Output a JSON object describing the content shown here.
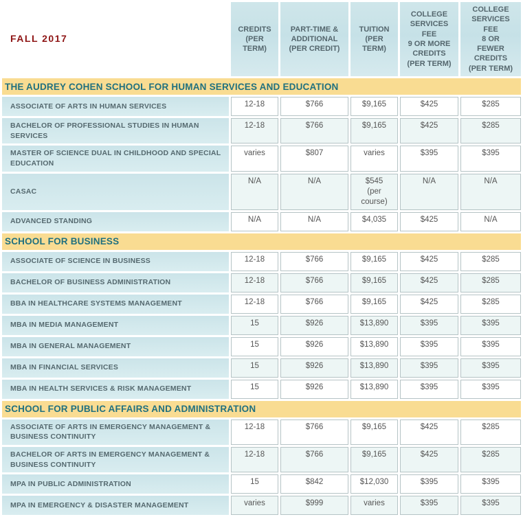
{
  "title": "FALL 2017",
  "columns": [
    "CREDITS\n(PER\nTERM)",
    "PART-TIME &\nADDITIONAL\n(PER CREDIT)",
    "TUITION\n(PER\nTERM)",
    "COLLEGE\nSERVICES\nFEE\n9 OR MORE\nCREDITS\n(PER TERM)",
    "COLLEGE\nSERVICES\nFEE\n8 OR\nFEWER\nCREDITS\n(PER TERM)"
  ],
  "sections": [
    {
      "title": "THE AUDREY COHEN SCHOOL FOR HUMAN SERVICES AND EDUCATION",
      "rows": [
        {
          "label": "ASSOCIATE OF ARTS IN HUMAN SERVICES",
          "values": [
            "12-18",
            "$766",
            "$9,165",
            "$425",
            "$285"
          ]
        },
        {
          "label": "BACHELOR OF PROFESSIONAL STUDIES IN HUMAN SERVICES",
          "values": [
            "12-18",
            "$766",
            "$9,165",
            "$425",
            "$285"
          ]
        },
        {
          "label": "MASTER OF SCIENCE DUAL IN CHILDHOOD AND SPECIAL EDUCATION",
          "values": [
            "varies",
            "$807",
            "varies",
            "$395",
            "$395"
          ]
        },
        {
          "label": "CASAC",
          "values": [
            "N/A",
            "N/A",
            "$545\n(per\ncourse)",
            "N/A",
            "N/A"
          ]
        },
        {
          "label": "ADVANCED STANDING",
          "values": [
            "N/A",
            "N/A",
            "$4,035",
            "$425",
            "N/A"
          ]
        }
      ]
    },
    {
      "title": "SCHOOL FOR BUSINESS",
      "rows": [
        {
          "label": "ASSOCIATE OF SCIENCE IN BUSINESS",
          "values": [
            "12-18",
            "$766",
            "$9,165",
            "$425",
            "$285"
          ]
        },
        {
          "label": "BACHELOR OF BUSINESS ADMINISTRATION",
          "values": [
            "12-18",
            "$766",
            "$9,165",
            "$425",
            "$285"
          ]
        },
        {
          "label": "BBA IN HEALTHCARE SYSTEMS MANAGEMENT",
          "values": [
            "12-18",
            "$766",
            "$9,165",
            "$425",
            "$285"
          ]
        },
        {
          "label": "MBA IN MEDIA MANAGEMENT",
          "values": [
            "15",
            "$926",
            "$13,890",
            "$395",
            "$395"
          ]
        },
        {
          "label": "MBA IN GENERAL MANAGEMENT",
          "values": [
            "15",
            "$926",
            "$13,890",
            "$395",
            "$395"
          ]
        },
        {
          "label": "MBA IN FINANCIAL SERVICES",
          "values": [
            "15",
            "$926",
            "$13,890",
            "$395",
            "$395"
          ]
        },
        {
          "label": "MBA IN HEALTH SERVICES & RISK MANAGEMENT",
          "values": [
            "15",
            "$926",
            "$13,890",
            "$395",
            "$395"
          ]
        }
      ]
    },
    {
      "title": "SCHOOL FOR PUBLIC AFFAIRS AND ADMINISTRATION",
      "rows": [
        {
          "label": "ASSOCIATE OF ARTS IN EMERGENCY MANAGEMENT & BUSINESS CONTINUITY",
          "values": [
            "12-18",
            "$766",
            "$9,165",
            "$425",
            "$285"
          ]
        },
        {
          "label": "BACHELOR OF ARTS IN EMERGENCY MANAGEMENT & BUSINESS CONTINUITY",
          "values": [
            "12-18",
            "$766",
            "$9,165",
            "$425",
            "$285"
          ]
        },
        {
          "label": "MPA IN PUBLIC ADMINISTRATION",
          "values": [
            "15",
            "$842",
            "$12,030",
            "$395",
            "$395"
          ]
        },
        {
          "label": "MPA IN EMERGENCY & DISASTER MANAGEMENT",
          "values": [
            "varies",
            "$999",
            "varies",
            "$395",
            "$395"
          ]
        }
      ]
    }
  ],
  "colors": {
    "section_band": "#f9dc92",
    "section_text": "#20707f",
    "header_cell_bg": "#cde5ea",
    "label_cell_bg": "#d2e8ec",
    "label_text": "#55696f",
    "value_text": "#555555",
    "value_alt_row_bg": "#edf6f5",
    "value_border": "#b5c3c5",
    "title_text": "#8e1414"
  }
}
